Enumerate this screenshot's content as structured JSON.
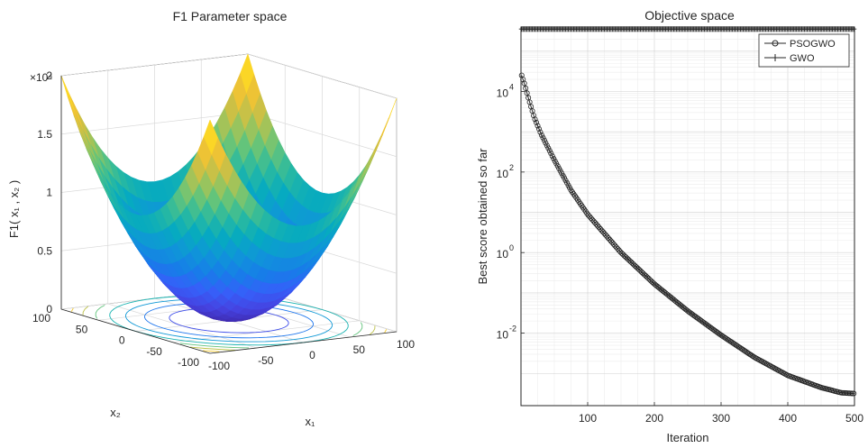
{
  "chart_data": [
    {
      "type": "surface",
      "title": "F1 Parameter space",
      "xlabel": "x₁",
      "ylabel": "x₂",
      "zlabel": "F1( x₁ , x₂ )",
      "z_exponent_label": "×10⁴",
      "xlim": [
        -100,
        100
      ],
      "ylim": [
        -100,
        100
      ],
      "zlim": [
        0,
        20000
      ],
      "x_ticks": [
        "-100",
        "-50",
        "0",
        "50",
        "100"
      ],
      "y_ticks": [
        "-100",
        "-50",
        "0",
        "50",
        "100"
      ],
      "z_ticks": [
        "0",
        "0.5",
        "1",
        "1.5",
        "2"
      ],
      "function": "x1^2 + x2^2",
      "colormap": "parula",
      "contour_levels": [
        2500,
        5000,
        7500,
        10000,
        12500,
        15000,
        17500,
        20000
      ]
    },
    {
      "type": "line",
      "title": "Objective space",
      "xlabel": "Iteration",
      "ylabel": "Best score obtained so far",
      "xlim": [
        0,
        500
      ],
      "ylim_log10": [
        -3.8,
        5.6
      ],
      "yscale": "log",
      "grid": true,
      "legend_position": "top-right",
      "x_ticks": [
        "100",
        "200",
        "300",
        "400",
        "500"
      ],
      "y_ticks": [
        {
          "base": "10",
          "exp": "-2",
          "log10": -2
        },
        {
          "base": "10",
          "exp": "0",
          "log10": 0
        },
        {
          "base": "10",
          "exp": "2",
          "log10": 2
        },
        {
          "base": "10",
          "exp": "4",
          "log10": 4
        }
      ],
      "series": [
        {
          "name": "PSOGWO",
          "marker": "circle",
          "x": [
            1,
            5,
            10,
            20,
            30,
            50,
            75,
            100,
            150,
            200,
            250,
            300,
            350,
            400,
            450,
            480,
            500
          ],
          "log10_y": [
            4.4,
            4.2,
            3.9,
            3.35,
            2.95,
            2.3,
            1.55,
            0.95,
            0.0,
            -0.78,
            -1.45,
            -2.05,
            -2.6,
            -3.05,
            -3.35,
            -3.48,
            -3.5
          ]
        },
        {
          "name": "GWO",
          "marker": "plus",
          "x": [
            1,
            50,
            100,
            150,
            200,
            250,
            300,
            350,
            400,
            450,
            500
          ],
          "log10_y": [
            5.55,
            5.55,
            5.55,
            5.55,
            5.55,
            5.55,
            5.55,
            5.55,
            5.55,
            5.55,
            5.55
          ]
        }
      ]
    }
  ]
}
